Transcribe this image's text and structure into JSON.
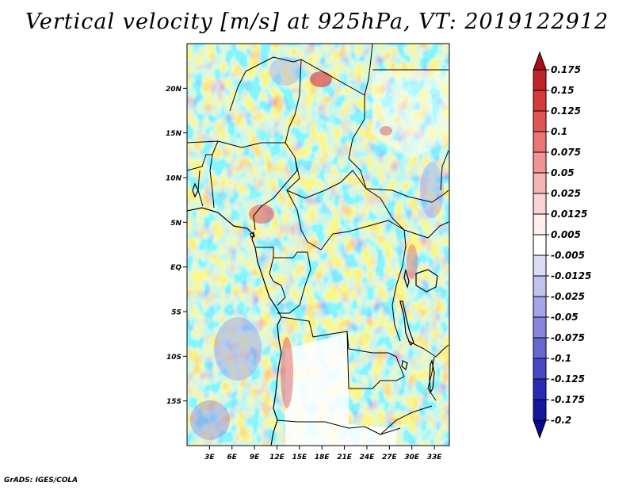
{
  "title": "Vertical velocity [m/s] at 925hPa, VT: 2019122912",
  "footer": "GrADS: IGES/COLA",
  "map": {
    "lon_range": [
      0,
      35
    ],
    "lat_range": [
      -20,
      25
    ],
    "lon_ticks": [
      "3E",
      "6E",
      "9E",
      "12E",
      "15E",
      "18E",
      "21E",
      "24E",
      "27E",
      "30E",
      "33E"
    ],
    "lon_tick_values": [
      3,
      6,
      9,
      12,
      15,
      18,
      21,
      24,
      27,
      30,
      33
    ],
    "lat_ticks": [
      "20N",
      "15N",
      "10N",
      "5N",
      "EQ",
      "5S",
      "10S",
      "15S"
    ],
    "lat_tick_values": [
      20,
      15,
      10,
      5,
      0,
      -5,
      -10,
      -15
    ]
  },
  "colorbar": {
    "labels": [
      "0.175",
      "0.15",
      "0.125",
      "0.1",
      "0.075",
      "0.05",
      "0.025",
      "0.0125",
      "0.005",
      "-0.005",
      "-0.0125",
      "-0.025",
      "-0.05",
      "-0.075",
      "-0.1",
      "-0.125",
      "-0.175",
      "-0.2"
    ],
    "colors": [
      "#a50f15",
      "#c0232a",
      "#d63a3a",
      "#e35454",
      "#ec7474",
      "#f29494",
      "#f7b4b4",
      "#fbd3d3",
      "#feeeee",
      "#ffffff",
      "#dcdcf6",
      "#c2c2f0",
      "#a4a4ea",
      "#8686e0",
      "#6767d4",
      "#4848c7",
      "#2a2ab6",
      "#1616a0",
      "#07078a"
    ]
  }
}
